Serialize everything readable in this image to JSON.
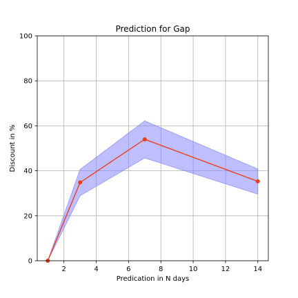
{
  "chart_data": {
    "type": "line",
    "title": "Prediction for Gap",
    "xlabel": "Predication in N days",
    "ylabel": "Discount in %",
    "xlim": [
      0.35,
      14.65
    ],
    "ylim": [
      0,
      100
    ],
    "xticks": [
      2,
      4,
      6,
      8,
      10,
      12,
      14
    ],
    "yticks": [
      0,
      20,
      40,
      60,
      80,
      100
    ],
    "grid": true,
    "series": [
      {
        "color": "#e8401a",
        "marker": "circle",
        "x": [
          1,
          3,
          7,
          14
        ],
        "y": [
          0,
          34.8,
          54,
          35.3
        ]
      }
    ],
    "band": {
      "color": "#8080ff",
      "x": [
        1,
        3,
        7,
        14
      ],
      "upper": [
        0,
        40.6,
        62.2,
        40.8
      ],
      "lower": [
        0,
        28.9,
        45.7,
        29.6
      ]
    }
  }
}
